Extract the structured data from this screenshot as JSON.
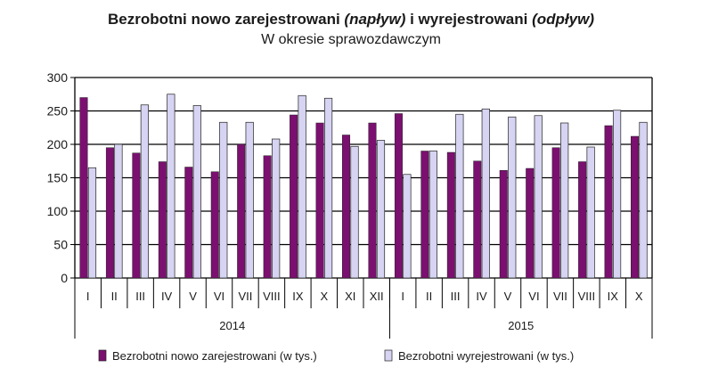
{
  "title_parts": {
    "part1": "Bezrobotni nowo zarejestrowani ",
    "part2": "(napływ)",
    "part3": " i wyrejestrowani ",
    "part4": "(odpływ)"
  },
  "subtitle": "W okresie sprawozdawczym",
  "colors": {
    "inflow": "#7b1070",
    "outflow": "#d6d4f2",
    "bar_border": "#222222",
    "grid": "#000000"
  },
  "chart_data": {
    "type": "bar",
    "ylim": [
      0,
      300
    ],
    "yticks": [
      0,
      50,
      100,
      150,
      200,
      250,
      300
    ],
    "grid": true,
    "legend_position": "bottom",
    "categories": [
      "I",
      "II",
      "III",
      "IV",
      "V",
      "VI",
      "VII",
      "VIII",
      "IX",
      "X",
      "XI",
      "XII",
      "I",
      "II",
      "III",
      "IV",
      "V",
      "VI",
      "VII",
      "VIII",
      "IX",
      "X"
    ],
    "groups": [
      {
        "label": "2014",
        "count": 12
      },
      {
        "label": "2015",
        "count": 10
      }
    ],
    "series": [
      {
        "name": "Bezrobotni nowo zarejestrowani (w tys.)",
        "values": [
          270,
          195,
          187,
          174,
          166,
          159,
          200,
          183,
          244,
          232,
          214,
          232,
          246,
          190,
          188,
          175,
          161,
          164,
          195,
          174,
          228,
          212
        ]
      },
      {
        "name": "Bezrobotni wyrejestrowani (w tys.)",
        "values": [
          165,
          200,
          259,
          275,
          258,
          233,
          233,
          208,
          273,
          269,
          197,
          206,
          155,
          190,
          245,
          253,
          241,
          243,
          232,
          196,
          251,
          233
        ]
      }
    ]
  }
}
